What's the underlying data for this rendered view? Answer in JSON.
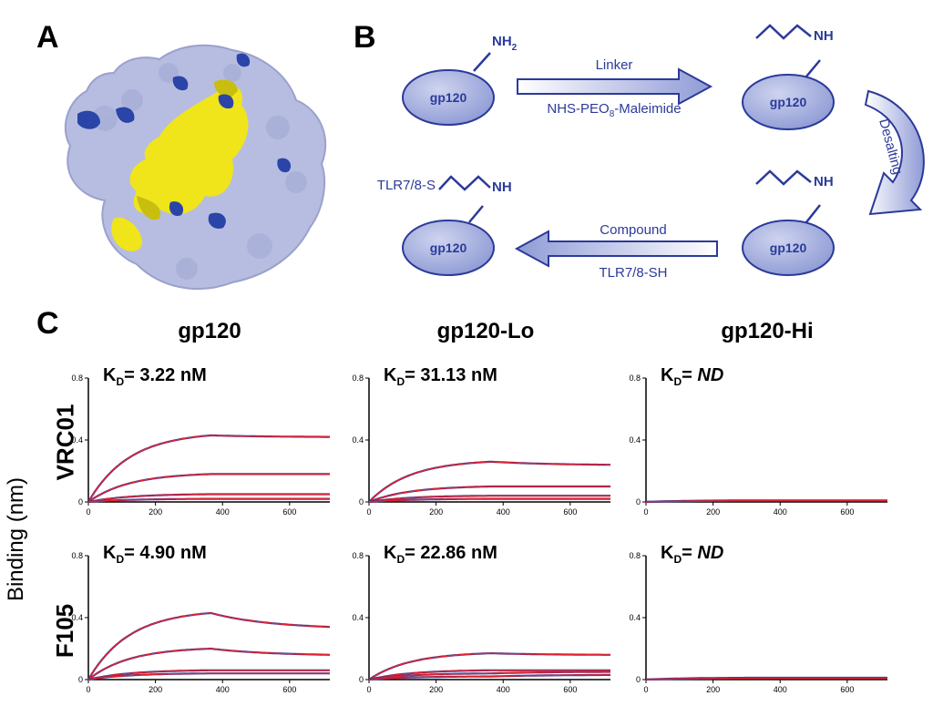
{
  "panels": {
    "a": "A",
    "b": "B",
    "c": "C"
  },
  "scheme": {
    "protein": "gp120",
    "amine": "NH",
    "amine_sub": "2",
    "step1_top": "Linker",
    "step1_bottom_pre": "NHS-PEO",
    "step1_bottom_sub": "8",
    "step1_bottom_post": "-Maleimide",
    "step2": "Desalting",
    "step3_top": "Compound",
    "step3_bottom": "TLR7/8-SH",
    "product_prefix": "TLR7/8-S"
  },
  "figure_c": {
    "columns": [
      "gp120",
      "gp120-Lo",
      "gp120-Hi"
    ],
    "rows": [
      "VRC01",
      "F105"
    ],
    "ylabel": "Binding (nm)",
    "kd_prefix": "K",
    "kd_sub": "D",
    "kd_equals": "= "
  },
  "colors": {
    "scheme_blue": "#2b3a9a",
    "ellipse_fill": "#aab4e0",
    "surface": "#b7bde0",
    "yellow": "#f0e51a",
    "dark_blue": "#2a44a8",
    "fit_red": "#e8202a",
    "data_blue": "#2a3a9a"
  },
  "chart_data": [
    {
      "type": "line",
      "row": "VRC01",
      "column": "gp120",
      "kd": "3.22 nM",
      "kd_italic": false,
      "xlim": [
        0,
        720
      ],
      "ylim": [
        0,
        0.8
      ],
      "xticks": [
        0,
        200,
        400,
        600
      ],
      "yticks": [
        0,
        0.4,
        0.8
      ],
      "association_end": 365,
      "series_peaks": [
        0.43,
        0.18,
        0.05,
        0.02
      ],
      "dissociation_end": [
        0.42,
        0.18,
        0.05,
        0.02
      ]
    },
    {
      "type": "line",
      "row": "VRC01",
      "column": "gp120-Lo",
      "kd": "31.13 nM",
      "kd_italic": false,
      "xlim": [
        0,
        720
      ],
      "ylim": [
        0,
        0.8
      ],
      "xticks": [
        0,
        200,
        400,
        600
      ],
      "yticks": [
        0,
        0.4,
        0.8
      ],
      "association_end": 365,
      "series_peaks": [
        0.26,
        0.1,
        0.04,
        0.02
      ],
      "dissociation_end": [
        0.24,
        0.1,
        0.04,
        0.02
      ]
    },
    {
      "type": "line",
      "row": "VRC01",
      "column": "gp120-Hi",
      "kd": "ND",
      "kd_italic": true,
      "xlim": [
        0,
        720
      ],
      "ylim": [
        0,
        0.8
      ],
      "xticks": [
        0,
        200,
        400,
        600
      ],
      "yticks": [
        0,
        0.4,
        0.8
      ],
      "association_end": 365,
      "series_peaks": [
        0.01,
        0.008
      ],
      "dissociation_end": [
        0.01,
        0.008
      ]
    },
    {
      "type": "line",
      "row": "F105",
      "column": "gp120",
      "kd": "4.90 nM",
      "kd_italic": false,
      "xlim": [
        0,
        720
      ],
      "ylim": [
        0,
        0.8
      ],
      "xticks": [
        0,
        200,
        400,
        600
      ],
      "yticks": [
        0,
        0.4,
        0.8
      ],
      "association_end": 365,
      "series_peaks": [
        0.43,
        0.2,
        0.06,
        0.04
      ],
      "dissociation_end": [
        0.34,
        0.16,
        0.06,
        0.04
      ]
    },
    {
      "type": "line",
      "row": "F105",
      "column": "gp120-Lo",
      "kd": "22.86 nM",
      "kd_italic": false,
      "xlim": [
        0,
        720
      ],
      "ylim": [
        0,
        0.8
      ],
      "xticks": [
        0,
        200,
        400,
        600
      ],
      "yticks": [
        0,
        0.4,
        0.8
      ],
      "association_end": 365,
      "series_peaks": [
        0.17,
        0.06,
        0.04,
        0.02
      ],
      "dissociation_end": [
        0.16,
        0.06,
        0.05,
        0.03
      ]
    },
    {
      "type": "line",
      "row": "F105",
      "column": "gp120-Hi",
      "kd": "ND",
      "kd_italic": true,
      "xlim": [
        0,
        720
      ],
      "ylim": [
        0,
        0.8
      ],
      "xticks": [
        0,
        200,
        400,
        600
      ],
      "yticks": [
        0,
        0.4,
        0.8
      ],
      "association_end": 365,
      "series_peaks": [
        0.012,
        0.008
      ],
      "dissociation_end": [
        0.012,
        0.008
      ]
    }
  ]
}
